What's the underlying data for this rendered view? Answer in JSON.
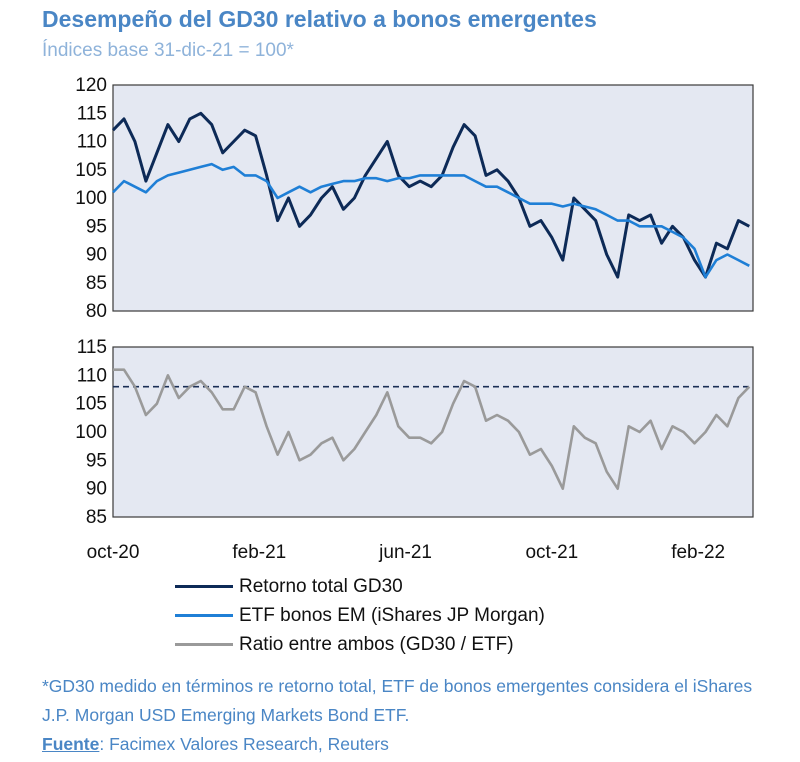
{
  "title": "Desempeño del GD30 relativo a bonos emergentes",
  "subtitle": "Índices base 31-dic-21 = 100*",
  "colors": {
    "gd30": "#0d2a57",
    "etf": "#1f7fd6",
    "ratio": "#9a9a9a",
    "plot_bg": "#e4e8f2",
    "title": "#4a86c5"
  },
  "chart_data": [
    {
      "type": "line",
      "panel": "top",
      "ylim": [
        80,
        120
      ],
      "yticks": [
        120,
        115,
        110,
        105,
        100,
        95,
        90,
        85,
        80
      ],
      "x_range": [
        0,
        17.5
      ],
      "series": [
        {
          "name": "Retorno total GD30",
          "color": "#0d2a57",
          "x": [
            0,
            0.3,
            0.6,
            0.9,
            1.2,
            1.5,
            1.8,
            2.1,
            2.4,
            2.7,
            3.0,
            3.3,
            3.6,
            3.9,
            4.2,
            4.5,
            4.8,
            5.1,
            5.4,
            5.7,
            6.0,
            6.3,
            6.6,
            6.9,
            7.2,
            7.5,
            7.8,
            8.1,
            8.4,
            8.7,
            9.0,
            9.3,
            9.6,
            9.9,
            10.2,
            10.5,
            10.8,
            11.1,
            11.4,
            11.7,
            12.0,
            12.3,
            12.6,
            12.9,
            13.2,
            13.5,
            13.8,
            14.1,
            14.4,
            14.7,
            15.0,
            15.3,
            15.6,
            15.9,
            16.2,
            16.5,
            16.8,
            17.1,
            17.4
          ],
          "values": [
            112,
            114,
            110,
            103,
            108,
            113,
            110,
            114,
            115,
            113,
            108,
            110,
            112,
            111,
            104,
            96,
            100,
            95,
            97,
            100,
            102,
            98,
            100,
            104,
            107,
            110,
            104,
            102,
            103,
            102,
            104,
            109,
            113,
            111,
            104,
            105,
            103,
            100,
            95,
            96,
            93,
            89,
            100,
            98,
            96,
            90,
            86,
            97,
            96,
            97,
            92,
            95,
            93,
            89,
            86,
            92,
            91,
            96,
            95
          ]
        },
        {
          "name": "ETF bonos EM (iShares JP Morgan)",
          "color": "#1f7fd6",
          "x": [
            0,
            0.3,
            0.6,
            0.9,
            1.2,
            1.5,
            1.8,
            2.1,
            2.4,
            2.7,
            3.0,
            3.3,
            3.6,
            3.9,
            4.2,
            4.5,
            4.8,
            5.1,
            5.4,
            5.7,
            6.0,
            6.3,
            6.6,
            6.9,
            7.2,
            7.5,
            7.8,
            8.1,
            8.4,
            8.7,
            9.0,
            9.3,
            9.6,
            9.9,
            10.2,
            10.5,
            10.8,
            11.1,
            11.4,
            11.7,
            12.0,
            12.3,
            12.6,
            12.9,
            13.2,
            13.5,
            13.8,
            14.1,
            14.4,
            14.7,
            15.0,
            15.3,
            15.6,
            15.9,
            16.2,
            16.5,
            16.8,
            17.1,
            17.4
          ],
          "values": [
            101,
            103,
            102,
            101,
            103,
            104,
            104.5,
            105,
            105.5,
            106,
            105,
            105.5,
            104,
            104,
            103,
            100,
            101,
            102,
            101,
            102,
            102.5,
            103,
            103,
            103.5,
            103.5,
            103,
            103.5,
            103.5,
            104,
            104,
            104,
            104,
            104,
            103,
            102,
            102,
            101,
            100,
            99,
            99,
            99,
            98.5,
            99,
            98.5,
            98,
            97,
            96,
            96,
            95,
            95,
            95,
            94,
            93,
            91,
            86,
            89,
            90,
            89,
            88
          ]
        }
      ]
    },
    {
      "type": "line",
      "panel": "bottom",
      "ylim": [
        85,
        115
      ],
      "yticks": [
        115,
        110,
        105,
        100,
        95,
        90,
        85
      ],
      "x_range": [
        0,
        17.5
      ],
      "reference_line": 108,
      "xticks": [
        "oct-20",
        "feb-21",
        "jun-21",
        "oct-21",
        "feb-22"
      ],
      "xtick_positions": [
        0,
        4,
        8,
        12,
        16
      ],
      "series": [
        {
          "name": "Ratio entre ambos (GD30 / ETF)",
          "color": "#9a9a9a",
          "x": [
            0,
            0.3,
            0.6,
            0.9,
            1.2,
            1.5,
            1.8,
            2.1,
            2.4,
            2.7,
            3.0,
            3.3,
            3.6,
            3.9,
            4.2,
            4.5,
            4.8,
            5.1,
            5.4,
            5.7,
            6.0,
            6.3,
            6.6,
            6.9,
            7.2,
            7.5,
            7.8,
            8.1,
            8.4,
            8.7,
            9.0,
            9.3,
            9.6,
            9.9,
            10.2,
            10.5,
            10.8,
            11.1,
            11.4,
            11.7,
            12.0,
            12.3,
            12.6,
            12.9,
            13.2,
            13.5,
            13.8,
            14.1,
            14.4,
            14.7,
            15.0,
            15.3,
            15.6,
            15.9,
            16.2,
            16.5,
            16.8,
            17.1,
            17.4
          ],
          "values": [
            111,
            111,
            108,
            103,
            105,
            110,
            106,
            108,
            109,
            107,
            104,
            104,
            108,
            107,
            101,
            96,
            100,
            95,
            96,
            98,
            99,
            95,
            97,
            100,
            103,
            107,
            101,
            99,
            99,
            98,
            100,
            105,
            109,
            108,
            102,
            103,
            102,
            100,
            96,
            97,
            94,
            90,
            101,
            99,
            98,
            93,
            90,
            101,
            100,
            102,
            97,
            101,
            100,
            98,
            100,
            103,
            101,
            106,
            108
          ]
        }
      ]
    }
  ],
  "legend": [
    {
      "label": "Retorno total GD30",
      "color": "#0d2a57"
    },
    {
      "label": "ETF bonos EM (iShares JP Morgan)",
      "color": "#1f7fd6"
    },
    {
      "label": "Ratio entre ambos (GD30 / ETF)",
      "color": "#9a9a9a"
    }
  ],
  "footnote": {
    "note": "*GD30 medido en términos re retorno total, ETF de bonos emergentes considera el iShares J.P. Morgan USD Emerging Markets Bond ETF.",
    "source_label": "Fuente",
    "source_text": ": Facimex Valores Research, Reuters"
  }
}
